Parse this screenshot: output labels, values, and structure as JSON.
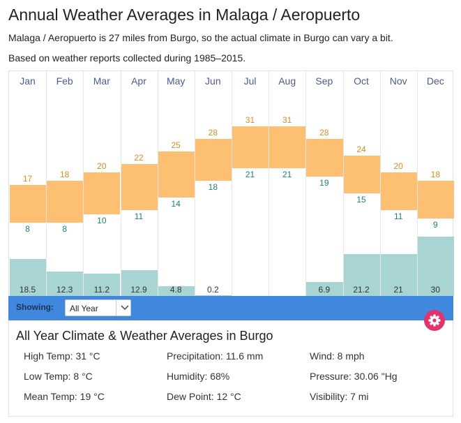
{
  "header": {
    "title": "Annual Weather Averages in Malaga / Aeropuerto",
    "note1": "Malaga / Aeropuerto is 27 miles from Burgo, so the actual climate in Burgo can vary a bit.",
    "note2": "Based on weather reports collected during 1985–2015."
  },
  "chart_data": {
    "type": "bar",
    "categories": [
      "Jan",
      "Feb",
      "Mar",
      "Apr",
      "May",
      "Jun",
      "Jul",
      "Aug",
      "Sep",
      "Oct",
      "Nov",
      "Dec"
    ],
    "high_temp": [
      17,
      18,
      20,
      22,
      25,
      28,
      31,
      31,
      28,
      24,
      20,
      18
    ],
    "low_temp": [
      8,
      8,
      10,
      11,
      14,
      18,
      21,
      21,
      19,
      15,
      11,
      9
    ],
    "precipitation": [
      18.5,
      12.3,
      11.2,
      12.9,
      4.8,
      0.2,
      0,
      0,
      6.9,
      21.2,
      21,
      30
    ],
    "precipitation_labels": [
      "18.5",
      "12.3",
      "11.2",
      "12.9",
      "4.8",
      "0.2",
      "",
      "",
      "6.9",
      "21.2",
      "21",
      "30"
    ],
    "colors": {
      "temp_range": "#fdbf72",
      "high_label": "#e08a26",
      "low_label": "#1d8080",
      "precip": "#a8d4d3"
    }
  },
  "toolbar": {
    "showing_label": "Showing:",
    "select_value": "All Year"
  },
  "panel": {
    "title": "All Year Climate & Weather Averages in Burgo",
    "stats": [
      "High Temp: 31 °C",
      "Precipitation: 11.6 mm",
      "Wind: 8 mph",
      "Low Temp: 8 °C",
      "Humidity: 68%",
      "Pressure: 30.06 \"Hg",
      "Mean Temp: 19 °C",
      "Dew Point: 12 °C",
      "Visibility: 7 mi"
    ]
  },
  "icons": {
    "settings": "gear-icon",
    "dropdown": "chevron-down-icon"
  }
}
